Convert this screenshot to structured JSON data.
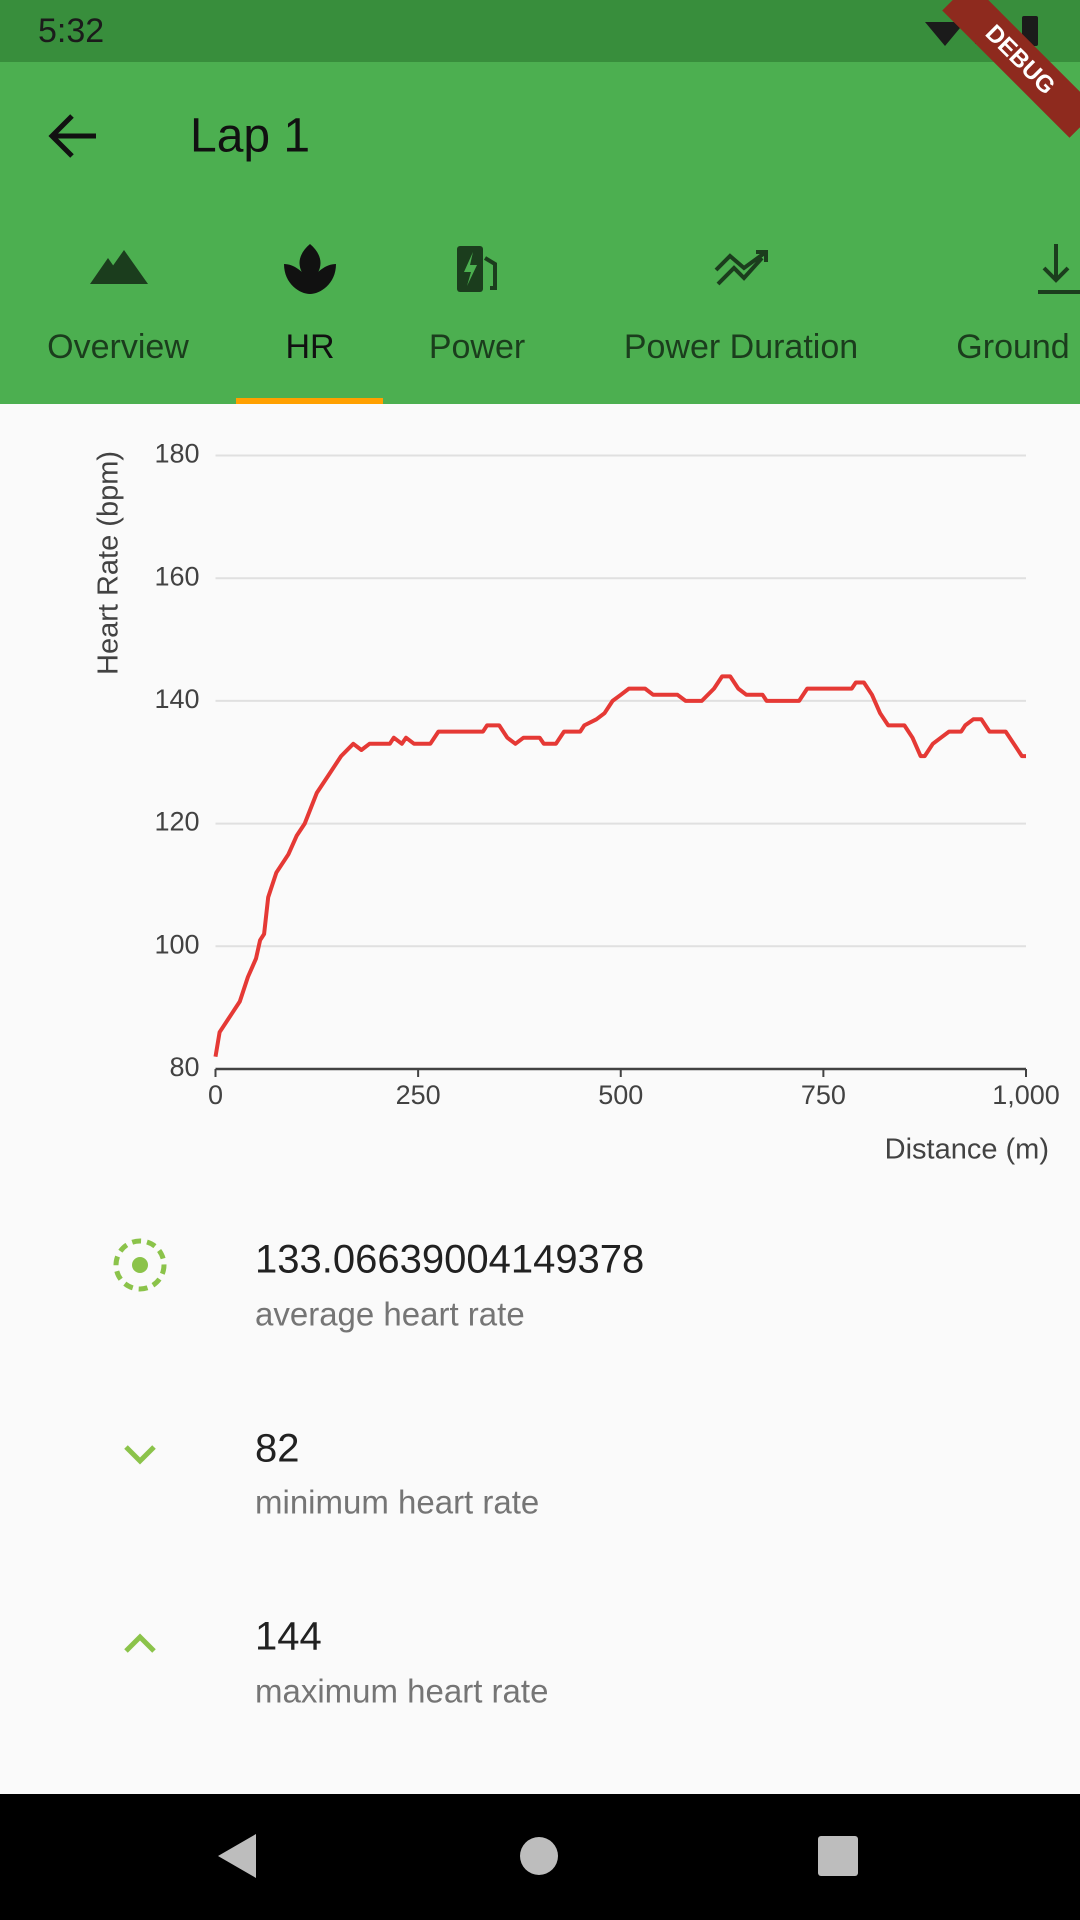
{
  "status_bar": {
    "time": "5:32"
  },
  "debug_banner": "DEBUG",
  "app_bar": {
    "title": "Lap 1"
  },
  "tabs": [
    {
      "label": "Overview"
    },
    {
      "label": "HR"
    },
    {
      "label": "Power"
    },
    {
      "label": "Power Duration"
    },
    {
      "label": "Ground"
    }
  ],
  "chart_data": {
    "type": "line",
    "color": "#e53935",
    "grid": true,
    "y_label": "Heart Rate (bpm)",
    "x_label": "Distance (m)",
    "xlim": [
      0,
      1000
    ],
    "ylim": [
      80,
      180
    ],
    "xticks": [
      0,
      250,
      500,
      750,
      {
        "value": 1000,
        "label": "1,000"
      }
    ],
    "yticks": [
      80,
      100,
      120,
      140,
      160,
      180
    ],
    "x": [
      0,
      5,
      20,
      30,
      40,
      50,
      55,
      60,
      65,
      75,
      90,
      100,
      110,
      125,
      140,
      155,
      170,
      180,
      190,
      215,
      220,
      230,
      235,
      245,
      265,
      275,
      330,
      335,
      350,
      360,
      370,
      380,
      400,
      405,
      420,
      430,
      450,
      455,
      470,
      480,
      490,
      500,
      510,
      530,
      540,
      570,
      580,
      600,
      615,
      625,
      635,
      645,
      655,
      675,
      680,
      720,
      730,
      785,
      790,
      800,
      810,
      820,
      830,
      850,
      860,
      870,
      875,
      885,
      895,
      905,
      920,
      925,
      935,
      945,
      955,
      975,
      985,
      995,
      1000
    ],
    "values": [
      82,
      86,
      89,
      91,
      95,
      98,
      101,
      102,
      108,
      112,
      115,
      118,
      120,
      125,
      128,
      131,
      133,
      132,
      133,
      133,
      134,
      133,
      134,
      133,
      133,
      135,
      135,
      136,
      136,
      134,
      133,
      134,
      134,
      133,
      133,
      135,
      135,
      136,
      137,
      138,
      140,
      141,
      142,
      142,
      141,
      141,
      140,
      140,
      142,
      144,
      144,
      142,
      141,
      141,
      140,
      140,
      142,
      142,
      143,
      143,
      141,
      138,
      136,
      136,
      134,
      131,
      131,
      133,
      134,
      135,
      135,
      136,
      137,
      137,
      135,
      135,
      133,
      131,
      131
    ]
  },
  "stats": [
    {
      "value": "133.06639004149378",
      "label": "average heart rate"
    },
    {
      "value": "82",
      "label": "minimum heart rate"
    },
    {
      "value": "144",
      "label": "maximum heart rate"
    }
  ]
}
